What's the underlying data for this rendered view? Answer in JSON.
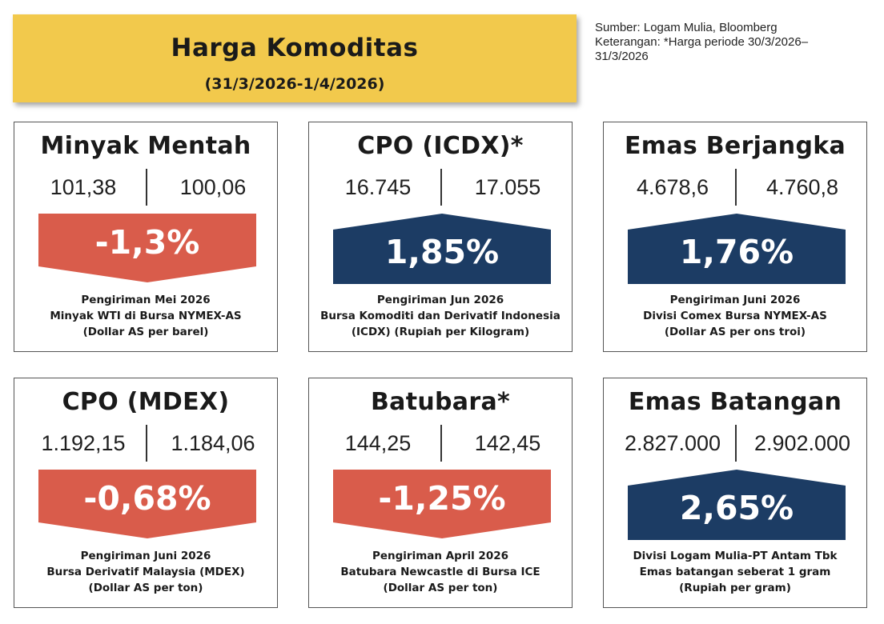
{
  "header": {
    "title": "Harga Komoditas",
    "period": "(31/3/2026-1/4/2026)"
  },
  "source": {
    "line1": "Sumber: Logam Mulia, Bloomberg",
    "line2": "Keterangan: *Harga periode 30/3/2026–\n31/3/2026"
  },
  "colors": {
    "title_bg": "#f2c94c",
    "down": "#d95c4b",
    "up": "#1c3c64"
  },
  "cards": [
    {
      "title": "Minyak Mentah",
      "prev": "101,38",
      "curr": "100,06",
      "change": "-1,3%",
      "direction": "down",
      "desc": [
        "Pengiriman Mei 2026",
        "Minyak WTI di Bursa NYMEX-AS",
        "(Dollar AS per barel)"
      ]
    },
    {
      "title": "CPO (ICDX)*",
      "prev": "16.745",
      "curr": "17.055",
      "change": "1,85%",
      "direction": "up",
      "desc": [
        "Pengiriman Jun 2026",
        "Bursa Komoditi dan Derivatif Indonesia",
        "(ICDX) (Rupiah per Kilogram)"
      ]
    },
    {
      "title": "Emas Berjangka",
      "prev": "4.678,6",
      "curr": "4.760,8",
      "change": "1,76%",
      "direction": "up",
      "desc": [
        "Pengiriman Juni 2026",
        "Divisi Comex Bursa NYMEX-AS",
        "(Dollar AS per ons troi)"
      ]
    },
    {
      "title": "CPO (MDEX)",
      "prev": "1.192,15",
      "curr": "1.184,06",
      "change": "-0,68%",
      "direction": "down",
      "desc": [
        "Pengiriman Juni 2026",
        "Bursa Derivatif Malaysia (MDEX)",
        "(Dollar AS per ton)"
      ]
    },
    {
      "title": "Batubara*",
      "prev": "144,25",
      "curr": "142,45",
      "change": "-1,25%",
      "direction": "down",
      "desc": [
        "Pengiriman April 2026",
        "Batubara Newcastle di Bursa ICE",
        "(Dollar AS per ton)"
      ]
    },
    {
      "title": "Emas Batangan",
      "prev": "2.827.000",
      "curr": "2.902.000",
      "change": "2,65%",
      "direction": "up",
      "desc": [
        "Divisi Logam Mulia-PT Antam Tbk",
        "Emas batangan seberat 1 gram",
        "(Rupiah per gram)"
      ]
    }
  ]
}
